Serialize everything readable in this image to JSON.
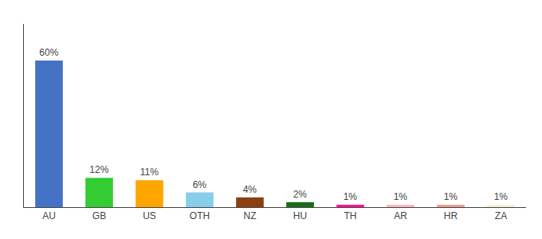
{
  "chart_data": {
    "type": "bar",
    "categories": [
      "AU",
      "GB",
      "US",
      "OTH",
      "NZ",
      "HU",
      "TH",
      "AR",
      "HR",
      "ZA"
    ],
    "values": [
      60,
      12,
      11,
      6,
      4,
      2,
      1,
      1,
      1,
      1
    ],
    "value_labels": [
      "60%",
      "12%",
      "11%",
      "6%",
      "4%",
      "2%",
      "1%",
      "1%",
      "1%",
      "1%"
    ],
    "data_labels": true,
    "colors": [
      "#4472C4",
      "#33CC33",
      "#FFA500",
      "#87CEEB",
      "#8B4010",
      "#1A6B1A",
      "#FF1493",
      "#FFB6C1",
      "#E8A090",
      "#F5F0D0"
    ],
    "ylim": [
      0,
      75
    ],
    "grid": false,
    "tick_labels": "x"
  }
}
